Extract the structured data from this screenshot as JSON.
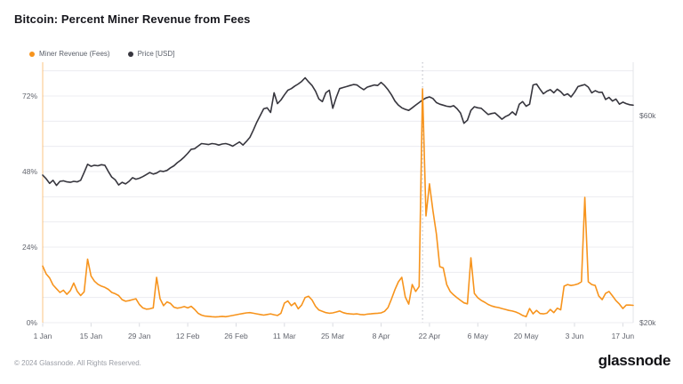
{
  "page": {
    "title": "Bitcoin: Percent Miner Revenue from Fees",
    "footer_copyright": "© 2024 Glassnode. All Rights Reserved.",
    "brand_wordmark": "glassnode"
  },
  "legend": [
    {
      "label": "Miner Revenue (Fees)",
      "color": "#f7941d"
    },
    {
      "label": "Price [USD]",
      "color": "#37363e"
    }
  ],
  "colors": {
    "fees_line": "#f7941d",
    "price_line": "#37363e",
    "grid": "#ececf1",
    "axis_text": "#62656e",
    "left_axis_line": "rgba(247,148,29,0.55)",
    "right_axis_line": "#e3e4e8",
    "tick_mark": "#d9dbe0",
    "annotation_line": "#b6b9c1",
    "background": "#ffffff"
  },
  "chart_data": {
    "type": "line",
    "title": "Bitcoin: Percent Miner Revenue from Fees",
    "x_unit": "day (daily samples, 1 Jan 2024 – 20 Jun 2024)",
    "x_tick_labels": [
      "1 Jan",
      "15 Jan",
      "29 Jan",
      "12 Feb",
      "26 Feb",
      "11 Mar",
      "25 Mar",
      "8 Apr",
      "22 Apr",
      "6 May",
      "20 May",
      "3 Jun",
      "17 Jun"
    ],
    "x_tick_interval_days": 14,
    "grid": "horizontal, every 8% of left axis",
    "legend_position": "top-left",
    "y_left": {
      "unit": "%",
      "ticks": [
        "0%",
        "24%",
        "48%",
        "72%"
      ],
      "range": [
        0,
        82.7
      ]
    },
    "y_right": {
      "unit": "USD thousands",
      "ticks": [
        "$20k",
        "$60k"
      ],
      "range": [
        20,
        70.3
      ]
    },
    "annotation_vline": {
      "style": "dotted",
      "day_index": 110
    },
    "series": [
      {
        "name": "Miner Revenue (Fees)",
        "axis": "left",
        "unit": "%",
        "color": "#f7941d",
        "values": [
          18.0,
          15.5,
          14.2,
          12.0,
          10.8,
          9.6,
          10.3,
          9.0,
          10.2,
          12.6,
          10.0,
          8.6,
          9.8,
          20.2,
          14.8,
          13.2,
          12.2,
          11.6,
          11.2,
          10.6,
          9.6,
          9.2,
          8.6,
          7.3,
          6.8,
          7.0,
          7.3,
          7.6,
          5.8,
          4.7,
          4.3,
          4.4,
          4.7,
          14.4,
          7.6,
          5.4,
          6.6,
          6.1,
          4.9,
          4.6,
          4.8,
          5.1,
          4.7,
          5.2,
          4.2,
          3.0,
          2.4,
          2.1,
          2.0,
          1.9,
          1.8,
          1.9,
          2.0,
          1.9,
          2.1,
          2.3,
          2.5,
          2.7,
          2.9,
          3.1,
          3.2,
          3.0,
          2.8,
          2.6,
          2.4,
          2.6,
          2.8,
          2.5,
          2.3,
          3.0,
          6.2,
          6.9,
          5.4,
          6.3,
          4.4,
          5.6,
          8.0,
          8.4,
          7.2,
          5.2,
          4.0,
          3.6,
          3.2,
          3.0,
          3.1,
          3.4,
          3.7,
          3.2,
          2.9,
          2.8,
          2.7,
          2.8,
          2.6,
          2.5,
          2.7,
          2.8,
          2.9,
          3.0,
          3.1,
          3.6,
          4.8,
          7.5,
          10.5,
          13.0,
          14.4,
          8.2,
          5.9,
          12.1,
          9.9,
          11.5,
          74.3,
          33.9,
          44.1,
          35.6,
          28.2,
          17.8,
          17.4,
          12.1,
          9.9,
          8.8,
          7.9,
          7.1,
          6.3,
          6.0,
          20.6,
          9.3,
          7.9,
          7.1,
          6.5,
          5.8,
          5.3,
          5.0,
          4.8,
          4.5,
          4.2,
          3.9,
          3.7,
          3.4,
          2.9,
          2.3,
          1.9,
          4.5,
          2.8,
          3.9,
          2.9,
          2.8,
          3.0,
          4.2,
          3.2,
          4.6,
          4.1,
          11.6,
          12.1,
          11.8,
          12.0,
          12.3,
          13.0,
          39.8,
          13.0,
          12.1,
          11.8,
          8.5,
          7.3,
          9.3,
          9.9,
          8.5,
          7.0,
          5.9,
          4.5,
          5.6,
          5.6,
          5.5
        ]
      },
      {
        "name": "Price [USD]",
        "axis": "right",
        "unit": "USD thousands",
        "color": "#37363e",
        "values": [
          48.5,
          47.8,
          46.9,
          47.5,
          46.5,
          47.3,
          47.4,
          47.2,
          47.1,
          47.3,
          47.2,
          47.5,
          49.0,
          50.6,
          50.2,
          50.4,
          50.3,
          50.5,
          50.4,
          49.2,
          48.1,
          47.6,
          46.6,
          47.1,
          46.8,
          47.3,
          48.0,
          47.7,
          47.9,
          48.2,
          48.6,
          49.0,
          48.7,
          48.9,
          49.3,
          49.2,
          49.4,
          49.9,
          50.3,
          50.9,
          51.4,
          52.0,
          52.7,
          53.5,
          53.6,
          54.1,
          54.6,
          54.5,
          54.4,
          54.6,
          54.5,
          54.3,
          54.5,
          54.6,
          54.4,
          54.1,
          54.5,
          54.9,
          54.3,
          55.0,
          55.8,
          57.2,
          58.7,
          60.0,
          61.3,
          61.5,
          60.6,
          64.4,
          62.3,
          63.0,
          64.0,
          64.9,
          65.2,
          65.7,
          66.1,
          66.6,
          67.3,
          66.5,
          65.8,
          64.7,
          63.2,
          62.7,
          64.4,
          64.9,
          61.4,
          63.5,
          65.2,
          65.4,
          65.6,
          65.8,
          66.0,
          65.9,
          65.4,
          65.0,
          65.5,
          65.7,
          65.9,
          65.8,
          66.4,
          65.8,
          65.0,
          64.0,
          62.8,
          62.0,
          61.5,
          61.2,
          61.0,
          61.5,
          62.0,
          62.5,
          63.0,
          63.4,
          63.6,
          63.3,
          62.5,
          62.2,
          62.0,
          61.8,
          61.7,
          61.9,
          61.3,
          60.5,
          58.5,
          59.1,
          61.0,
          61.7,
          61.5,
          61.4,
          60.8,
          60.2,
          60.4,
          60.5,
          59.9,
          59.3,
          59.8,
          60.1,
          60.7,
          60.1,
          62.2,
          62.7,
          61.8,
          62.2,
          65.9,
          66.1,
          65.1,
          64.2,
          64.7,
          65.0,
          64.4,
          65.1,
          64.6,
          63.9,
          64.2,
          63.6,
          64.5,
          65.6,
          65.8,
          66.0,
          65.5,
          64.4,
          64.8,
          64.5,
          64.5,
          63.1,
          63.5,
          62.8,
          63.2,
          62.2,
          62.6,
          62.3,
          62.1,
          62.0
        ]
      }
    ]
  }
}
